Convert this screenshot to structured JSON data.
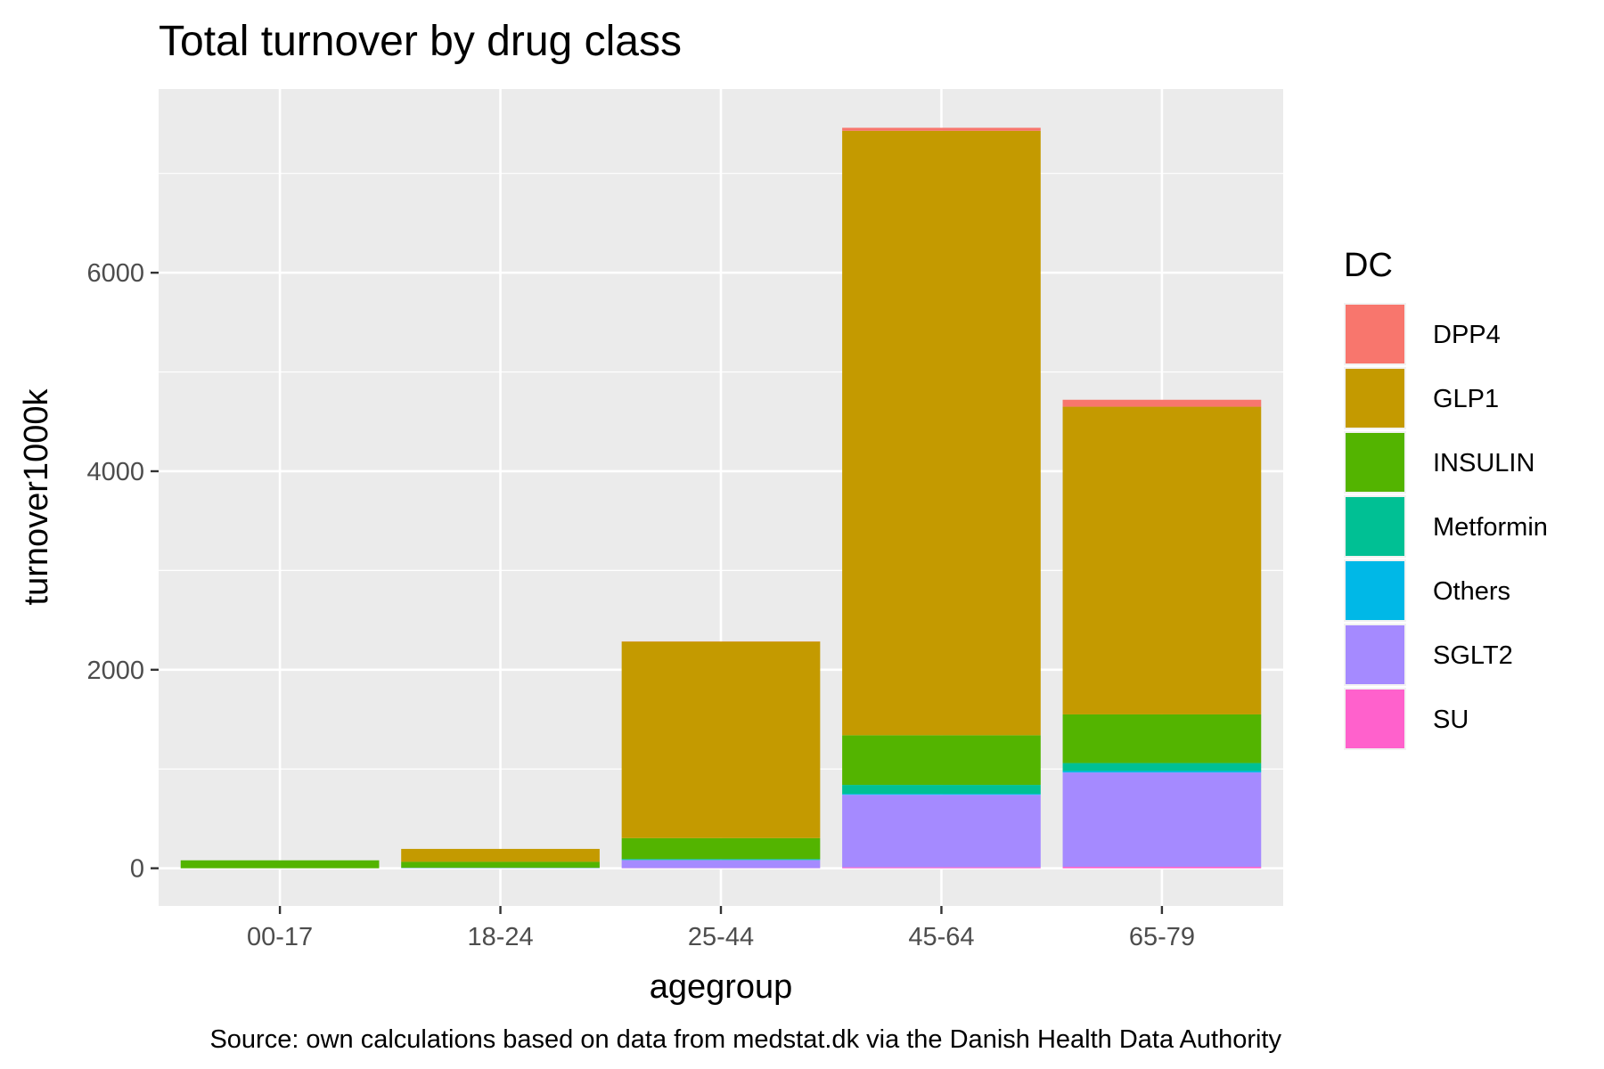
{
  "chart_data": {
    "type": "bar",
    "stacked": true,
    "title": "Total turnover by drug class",
    "xlabel": "agegroup",
    "ylabel": "turnover1000k",
    "caption": "Source: own calculations based on data from medstat.dk via the Danish Health Data Authority",
    "categories": [
      "00-17",
      "18-24",
      "25-44",
      "45-64",
      "65-79"
    ],
    "ylim": [
      -380,
      7850
    ],
    "yticks": [
      0,
      2000,
      4000,
      6000
    ],
    "grid": true,
    "legend": {
      "title": "DC",
      "position": "right"
    },
    "series": [
      {
        "name": "SU",
        "color": "#FF61CC",
        "values": [
          0,
          0,
          2,
          10,
          15
        ]
      },
      {
        "name": "SGLT2",
        "color": "#A58AFF",
        "values": [
          0,
          3,
          80,
          730,
          950
        ]
      },
      {
        "name": "Others",
        "color": "#00B8E7",
        "values": [
          0,
          0,
          2,
          10,
          15
        ]
      },
      {
        "name": "Metformin",
        "color": "#00C094",
        "values": [
          0,
          2,
          10,
          90,
          80
        ]
      },
      {
        "name": "INSULIN",
        "color": "#53B400",
        "values": [
          80,
          60,
          210,
          500,
          490
        ]
      },
      {
        "name": "GLP1",
        "color": "#C49A00",
        "values": [
          0,
          130,
          1980,
          6090,
          3100
        ]
      },
      {
        "name": "DPP4",
        "color": "#F8766D",
        "values": [
          0,
          0,
          2,
          30,
          70
        ]
      }
    ]
  }
}
